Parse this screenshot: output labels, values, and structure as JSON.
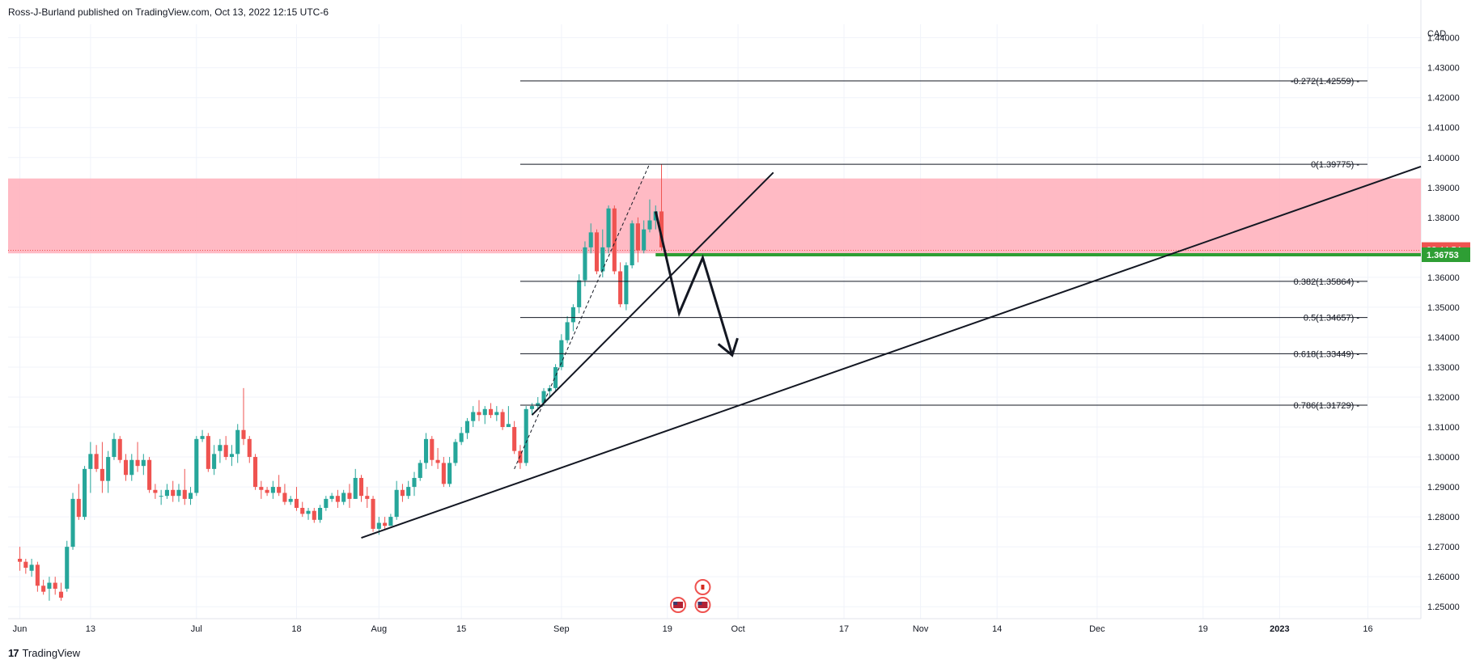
{
  "header": {
    "published": "Ross-J-Burland published on TradingView.com, Oct 13, 2022 12:15 UTC-6"
  },
  "footer": {
    "logo_text": "TradingView",
    "logo_glyph": "17"
  },
  "chart_data": {
    "type": "candlestick",
    "currency_label": "CAD",
    "ylim": [
      1.246,
      1.4445
    ],
    "y_ticks": [
      "1.25000",
      "1.26000",
      "1.27000",
      "1.28000",
      "1.29000",
      "1.30000",
      "1.31000",
      "1.32000",
      "1.33000",
      "1.34000",
      "1.35000",
      "1.36000",
      "1.37000",
      "1.38000",
      "1.39000",
      "1.40000",
      "1.41000",
      "1.42000",
      "1.43000",
      "1.44000"
    ],
    "x_ticks": [
      "Jun",
      "13",
      "Jul",
      "18",
      "Aug",
      "15",
      "Sep",
      "19",
      "Oct",
      "17",
      "Nov",
      "14",
      "Dec",
      "19",
      "2023",
      "16"
    ],
    "x_tick_days": [
      0,
      12,
      30,
      47,
      61,
      75,
      92,
      110,
      122,
      140,
      153,
      166,
      183,
      201,
      214,
      229
    ],
    "x_day_range": [
      -2,
      238
    ],
    "bars_count_day0": "2022-06-01",
    "candles": [
      [
        0,
        1.266,
        1.27,
        1.262,
        1.265
      ],
      [
        1,
        1.265,
        1.266,
        1.261,
        1.263
      ],
      [
        2,
        1.262,
        1.266,
        1.26,
        1.264
      ],
      [
        3,
        1.264,
        1.265,
        1.255,
        1.257
      ],
      [
        4,
        1.257,
        1.259,
        1.254,
        1.255
      ],
      [
        5,
        1.256,
        1.26,
        1.252,
        1.258
      ],
      [
        6,
        1.258,
        1.26,
        1.254,
        1.256
      ],
      [
        7,
        1.255,
        1.258,
        1.252,
        1.253
      ],
      [
        8,
        1.256,
        1.272,
        1.255,
        1.27
      ],
      [
        9,
        1.27,
        1.288,
        1.269,
        1.286
      ],
      [
        10,
        1.286,
        1.291,
        1.279,
        1.28
      ],
      [
        11,
        1.28,
        1.297,
        1.279,
        1.296
      ],
      [
        12,
        1.296,
        1.305,
        1.288,
        1.301
      ],
      [
        13,
        1.301,
        1.304,
        1.295,
        1.296
      ],
      [
        14,
        1.296,
        1.305,
        1.288,
        1.292
      ],
      [
        15,
        1.292,
        1.302,
        1.288,
        1.3
      ],
      [
        16,
        1.3,
        1.308,
        1.299,
        1.306
      ],
      [
        17,
        1.306,
        1.307,
        1.298,
        1.299
      ],
      [
        18,
        1.299,
        1.301,
        1.292,
        1.294
      ],
      [
        19,
        1.294,
        1.301,
        1.292,
        1.299
      ],
      [
        20,
        1.299,
        1.305,
        1.295,
        1.297
      ],
      [
        21,
        1.297,
        1.301,
        1.294,
        1.299
      ],
      [
        22,
        1.299,
        1.3,
        1.288,
        1.289
      ],
      [
        23,
        1.289,
        1.291,
        1.286,
        1.288
      ],
      [
        24,
        1.287,
        1.289,
        1.284,
        1.287
      ],
      [
        25,
        1.287,
        1.291,
        1.286,
        1.289
      ],
      [
        26,
        1.289,
        1.292,
        1.285,
        1.287
      ],
      [
        27,
        1.287,
        1.291,
        1.285,
        1.289
      ],
      [
        28,
        1.289,
        1.296,
        1.284,
        1.286
      ],
      [
        29,
        1.286,
        1.29,
        1.284,
        1.288
      ],
      [
        30,
        1.288,
        1.307,
        1.287,
        1.306
      ],
      [
        31,
        1.306,
        1.309,
        1.305,
        1.307
      ],
      [
        32,
        1.307,
        1.308,
        1.295,
        1.296
      ],
      [
        33,
        1.296,
        1.304,
        1.294,
        1.301
      ],
      [
        34,
        1.302,
        1.306,
        1.298,
        1.304
      ],
      [
        35,
        1.304,
        1.307,
        1.299,
        1.3
      ],
      [
        36,
        1.3,
        1.304,
        1.297,
        1.301
      ],
      [
        37,
        1.301,
        1.311,
        1.298,
        1.309
      ],
      [
        38,
        1.309,
        1.323,
        1.304,
        1.306
      ],
      [
        39,
        1.306,
        1.307,
        1.298,
        1.3
      ],
      [
        40,
        1.3,
        1.301,
        1.289,
        1.29
      ],
      [
        41,
        1.29,
        1.292,
        1.286,
        1.289
      ],
      [
        42,
        1.289,
        1.29,
        1.287,
        1.288
      ],
      [
        43,
        1.288,
        1.292,
        1.286,
        1.29
      ],
      [
        44,
        1.29,
        1.294,
        1.287,
        1.288
      ],
      [
        45,
        1.288,
        1.291,
        1.284,
        1.285
      ],
      [
        46,
        1.285,
        1.287,
        1.284,
        1.286
      ],
      [
        47,
        1.286,
        1.29,
        1.282,
        1.283
      ],
      [
        48,
        1.283,
        1.285,
        1.28,
        1.281
      ],
      [
        49,
        1.281,
        1.283,
        1.279,
        1.282
      ],
      [
        50,
        1.282,
        1.283,
        1.278,
        1.279
      ],
      [
        51,
        1.279,
        1.284,
        1.278,
        1.283
      ],
      [
        52,
        1.283,
        1.287,
        1.282,
        1.286
      ],
      [
        53,
        1.286,
        1.288,
        1.285,
        1.287
      ],
      [
        54,
        1.287,
        1.289,
        1.283,
        1.285
      ],
      [
        55,
        1.285,
        1.289,
        1.284,
        1.288
      ],
      [
        56,
        1.288,
        1.291,
        1.283,
        1.286
      ],
      [
        57,
        1.286,
        1.296,
        1.286,
        1.293
      ],
      [
        58,
        1.293,
        1.294,
        1.285,
        1.287
      ],
      [
        59,
        1.287,
        1.29,
        1.283,
        1.286
      ],
      [
        60,
        1.286,
        1.287,
        1.275,
        1.276
      ],
      [
        61,
        1.276,
        1.28,
        1.274,
        1.278
      ],
      [
        62,
        1.278,
        1.28,
        1.276,
        1.277
      ],
      [
        63,
        1.277,
        1.281,
        1.277,
        1.28
      ],
      [
        64,
        1.28,
        1.292,
        1.279,
        1.289
      ],
      [
        65,
        1.289,
        1.291,
        1.285,
        1.287
      ],
      [
        66,
        1.287,
        1.292,
        1.286,
        1.29
      ],
      [
        67,
        1.29,
        1.295,
        1.287,
        1.293
      ],
      [
        68,
        1.293,
        1.299,
        1.292,
        1.298
      ],
      [
        69,
        1.298,
        1.308,
        1.296,
        1.306
      ],
      [
        70,
        1.306,
        1.307,
        1.297,
        1.299
      ],
      [
        71,
        1.299,
        1.303,
        1.296,
        1.298
      ],
      [
        72,
        1.298,
        1.3,
        1.29,
        1.291
      ],
      [
        73,
        1.291,
        1.3,
        1.29,
        1.298
      ],
      [
        74,
        1.298,
        1.306,
        1.297,
        1.305
      ],
      [
        75,
        1.305,
        1.31,
        1.304,
        1.308
      ],
      [
        76,
        1.308,
        1.313,
        1.306,
        1.312
      ],
      [
        77,
        1.312,
        1.317,
        1.31,
        1.315
      ],
      [
        78,
        1.315,
        1.319,
        1.312,
        1.314
      ],
      [
        79,
        1.314,
        1.317,
        1.311,
        1.316
      ],
      [
        80,
        1.316,
        1.318,
        1.313,
        1.314
      ],
      [
        81,
        1.314,
        1.317,
        1.312,
        1.315
      ],
      [
        82,
        1.315,
        1.316,
        1.309,
        1.31
      ],
      [
        83,
        1.31,
        1.317,
        1.31,
        1.311
      ],
      [
        84,
        1.31,
        1.312,
        1.301,
        1.302
      ],
      [
        85,
        1.302,
        1.304,
        1.296,
        1.298
      ],
      [
        86,
        1.298,
        1.317,
        1.297,
        1.316
      ],
      [
        87,
        1.316,
        1.318,
        1.314,
        1.317
      ],
      [
        88,
        1.317,
        1.32,
        1.316,
        1.318
      ],
      [
        89,
        1.318,
        1.323,
        1.317,
        1.322
      ],
      [
        90,
        1.322,
        1.324,
        1.32,
        1.323
      ],
      [
        91,
        1.323,
        1.331,
        1.322,
        1.33
      ],
      [
        92,
        1.33,
        1.341,
        1.329,
        1.339
      ],
      [
        93,
        1.339,
        1.347,
        1.338,
        1.345
      ],
      [
        94,
        1.345,
        1.351,
        1.342,
        1.35
      ],
      [
        95,
        1.35,
        1.361,
        1.348,
        1.359
      ],
      [
        96,
        1.359,
        1.372,
        1.357,
        1.37
      ],
      [
        97,
        1.37,
        1.378,
        1.368,
        1.375
      ],
      [
        98,
        1.375,
        1.376,
        1.361,
        1.362
      ],
      [
        99,
        1.362,
        1.376,
        1.36,
        1.37
      ],
      [
        100,
        1.37,
        1.384,
        1.368,
        1.383
      ],
      [
        101,
        1.383,
        1.384,
        1.361,
        1.362
      ],
      [
        102,
        1.362,
        1.365,
        1.35,
        1.351
      ],
      [
        103,
        1.351,
        1.365,
        1.349,
        1.364
      ],
      [
        104,
        1.364,
        1.379,
        1.363,
        1.378
      ],
      [
        105,
        1.378,
        1.38,
        1.365,
        1.369
      ],
      [
        106,
        1.369,
        1.379,
        1.368,
        1.376
      ],
      [
        107,
        1.376,
        1.386,
        1.375,
        1.379
      ],
      [
        108,
        1.379,
        1.384,
        1.376,
        1.382
      ],
      [
        109,
        1.382,
        1.3977,
        1.369,
        1.37
      ]
    ],
    "highlight_zone": {
      "from": 1.368,
      "to": 1.393
    },
    "current_price": {
      "label": "02:44:54",
      "value": 1.369
    },
    "support_level": {
      "label": "1.36753",
      "value": 1.36753,
      "from_day": 108
    },
    "fib_levels": [
      {
        "label": "-0.272(1.42559)",
        "value": 1.42559
      },
      {
        "label": "0(1.39775)",
        "value": 1.39775
      },
      {
        "label": "0.382(1.35864)",
        "value": 1.35864
      },
      {
        "label": "0.5(1.34657)",
        "value": 1.34657
      },
      {
        "label": "0.618(1.33449)",
        "value": 1.33449
      },
      {
        "label": "0.786(1.31729)",
        "value": 1.31729
      }
    ],
    "fib_from_day": 85,
    "trendlines": [
      {
        "x1": 58,
        "y1": 1.273,
        "x2": 238,
        "y2": 1.397,
        "style": "solid"
      },
      {
        "x1": 87,
        "y1": 1.314,
        "x2": 128,
        "y2": 1.395,
        "style": "solid"
      },
      {
        "x1": 84,
        "y1": 1.296,
        "x2": 107,
        "y2": 1.398,
        "style": "dashed"
      }
    ],
    "projection_path": [
      [
        108,
        1.382
      ],
      [
        112,
        1.348
      ],
      [
        116,
        1.3665
      ],
      [
        121,
        1.334
      ]
    ],
    "events": [
      {
        "day": 111,
        "icon": "us-flag"
      },
      {
        "day": 116,
        "icon": "us-flag"
      },
      {
        "day": 116,
        "icon": "ca-flag"
      }
    ],
    "colors": {
      "up": "#26a69a",
      "down": "#ef5350",
      "zone": "#ffb3be",
      "support": "#2e9e34",
      "grid": "#f0f3fa",
      "line": "#131722"
    },
    "grid": true
  }
}
